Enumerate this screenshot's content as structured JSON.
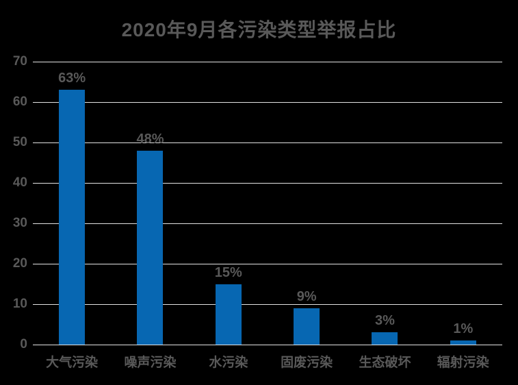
{
  "title": "2020年9月各污染类型举报占比",
  "colors": {
    "background": "#000000",
    "bar": "#0767B2",
    "text": "#595959",
    "gridline": "#E3E3E3"
  },
  "chart_data": {
    "type": "bar",
    "title": "2020年9月各污染类型举报占比",
    "categories": [
      "大气污染",
      "噪声污染",
      "水污染",
      "固废污染",
      "生态破坏",
      "辐射污染"
    ],
    "values": [
      63,
      48,
      15,
      9,
      3,
      1
    ],
    "data_labels": [
      "63%",
      "48%",
      "15%",
      "9%",
      "3%",
      "1%"
    ],
    "xlabel": "",
    "ylabel": "",
    "ylim": [
      0,
      70
    ],
    "yticks": [
      0,
      10,
      20,
      30,
      40,
      50,
      60,
      70
    ],
    "grid": "horizontal",
    "legend": "none",
    "bar_color": "#0767B2"
  }
}
